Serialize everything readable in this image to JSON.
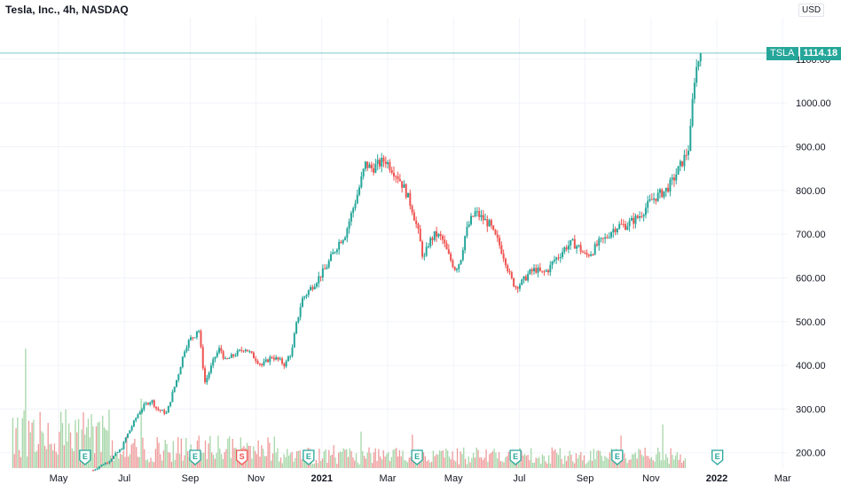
{
  "header": {
    "legend_title": "Tesla, Inc., 4h, NASDAQ",
    "unit_chip": "USD"
  },
  "price_scale": {
    "ticks": [
      "200.00",
      "300.00",
      "400.00",
      "500.00",
      "600.00",
      "700.00",
      "800.00",
      "900.00",
      "1000.00",
      "1100.00"
    ]
  },
  "time_axis": {
    "labels": [
      "May",
      "Jul",
      "Sep",
      "Nov",
      "2021",
      "Mar",
      "May",
      "Jul",
      "Sep",
      "Nov",
      "2022",
      "Mar"
    ]
  },
  "last_price_tag": {
    "symbol": "TSLA",
    "value": "1114.18"
  },
  "colors": {
    "up": "#26a69a",
    "down": "#ef5350",
    "volume_up": "#a5d6a7",
    "volume_down": "#ef9a9a",
    "grid": "#f0f3fa",
    "price_line": "#26a69a",
    "axis_text": "#131722"
  },
  "chart_data": {
    "type": "candlestick",
    "symbol": "TSLA",
    "title": "Tesla, Inc., 4h, NASDAQ",
    "ylabel": "USD",
    "ylim": [
      165,
      1195
    ],
    "x_domain_months": [
      0,
      23.5
    ],
    "last_price": 1114.18,
    "price_path": [
      [
        2.05,
        160
      ],
      [
        2.25,
        170
      ],
      [
        2.5,
        180
      ],
      [
        2.7,
        195
      ],
      [
        2.9,
        210
      ],
      [
        3.0,
        230
      ],
      [
        3.2,
        260
      ],
      [
        3.4,
        290
      ],
      [
        3.6,
        310
      ],
      [
        3.8,
        320
      ],
      [
        3.95,
        300
      ],
      [
        4.1,
        295
      ],
      [
        4.25,
        290
      ],
      [
        4.4,
        330
      ],
      [
        4.6,
        380
      ],
      [
        4.8,
        440
      ],
      [
        4.95,
        460
      ],
      [
        5.1,
        470
      ],
      [
        5.2,
        490
      ],
      [
        5.3,
        420
      ],
      [
        5.4,
        360
      ],
      [
        5.5,
        380
      ],
      [
        5.7,
        420
      ],
      [
        5.85,
        440
      ],
      [
        6.0,
        410
      ],
      [
        6.2,
        420
      ],
      [
        6.4,
        430
      ],
      [
        6.6,
        440
      ],
      [
        6.85,
        420
      ],
      [
        7.1,
        400
      ],
      [
        7.4,
        420
      ],
      [
        7.65,
        410
      ],
      [
        7.8,
        400
      ],
      [
        7.9,
        420
      ],
      [
        8.0,
        430
      ],
      [
        8.1,
        480
      ],
      [
        8.3,
        550
      ],
      [
        8.5,
        570
      ],
      [
        8.8,
        600
      ],
      [
        9.0,
        620
      ],
      [
        9.2,
        650
      ],
      [
        9.4,
        680
      ],
      [
        9.6,
        700
      ],
      [
        9.8,
        750
      ],
      [
        10.0,
        800
      ],
      [
        10.2,
        860
      ],
      [
        10.4,
        850
      ],
      [
        10.6,
        860
      ],
      [
        10.8,
        870
      ],
      [
        11.0,
        850
      ],
      [
        11.2,
        830
      ],
      [
        11.4,
        800
      ],
      [
        11.6,
        760
      ],
      [
        11.8,
        700
      ],
      [
        11.95,
        640
      ],
      [
        12.1,
        680
      ],
      [
        12.3,
        700
      ],
      [
        12.5,
        690
      ],
      [
        12.7,
        650
      ],
      [
        12.9,
        620
      ],
      [
        13.05,
        640
      ],
      [
        13.2,
        700
      ],
      [
        13.35,
        730
      ],
      [
        13.5,
        750
      ],
      [
        13.65,
        740
      ],
      [
        13.8,
        730
      ],
      [
        13.95,
        720
      ],
      [
        14.05,
        700
      ],
      [
        14.2,
        680
      ],
      [
        14.4,
        640
      ],
      [
        14.55,
        600
      ],
      [
        14.7,
        580
      ],
      [
        14.9,
        590
      ],
      [
        15.1,
        610
      ],
      [
        15.3,
        620
      ],
      [
        15.5,
        610
      ],
      [
        15.7,
        620
      ],
      [
        15.85,
        640
      ],
      [
        16.0,
        650
      ],
      [
        16.2,
        670
      ],
      [
        16.4,
        680
      ],
      [
        16.6,
        670
      ],
      [
        16.8,
        650
      ],
      [
        17.0,
        660
      ],
      [
        17.2,
        680
      ],
      [
        17.4,
        690
      ],
      [
        17.6,
        710
      ],
      [
        17.8,
        720
      ],
      [
        18.0,
        720
      ],
      [
        18.2,
        730
      ],
      [
        18.4,
        740
      ],
      [
        18.6,
        760
      ],
      [
        18.8,
        780
      ],
      [
        19.0,
        790
      ],
      [
        19.2,
        800
      ],
      [
        19.4,
        820
      ],
      [
        19.6,
        850
      ],
      [
        19.8,
        880
      ],
      [
        19.9,
        900
      ],
      [
        19.95,
        940
      ],
      [
        20.05,
        1050
      ],
      [
        20.15,
        1090
      ],
      [
        20.25,
        1114.18
      ]
    ],
    "earnings_markers": [
      {
        "month": 1.75,
        "label": "E"
      },
      {
        "month": 5.05,
        "label": "E"
      },
      {
        "month": 6.45,
        "label": "S"
      },
      {
        "month": 8.45,
        "label": "E"
      },
      {
        "month": 11.7,
        "label": "E"
      },
      {
        "month": 14.65,
        "label": "E"
      },
      {
        "month": 17.7,
        "label": "E"
      },
      {
        "month": 20.7,
        "label": "E"
      }
    ]
  }
}
